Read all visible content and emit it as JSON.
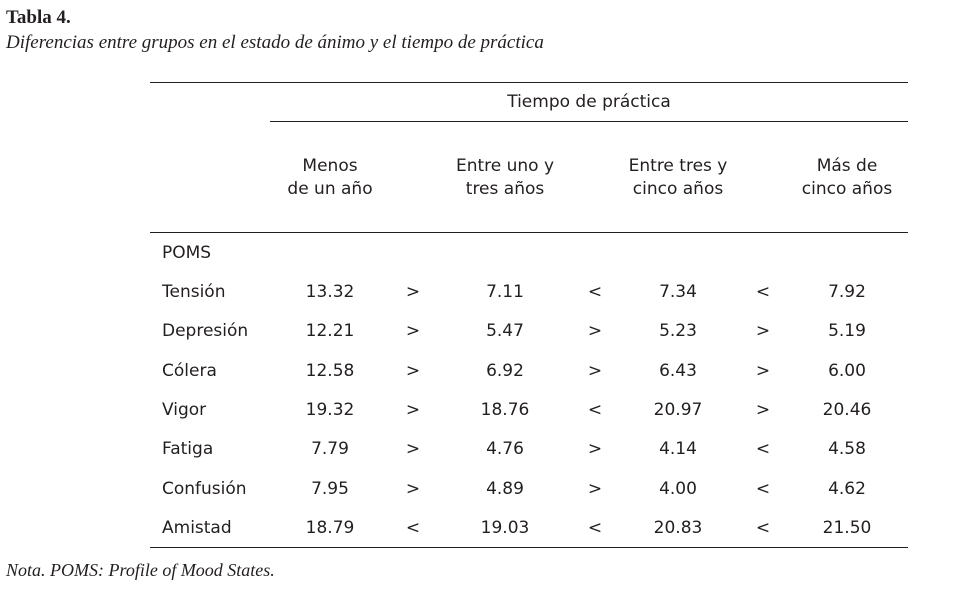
{
  "title": "Tabla 4.",
  "subtitle": "Diferencias entre grupos en el estado de ánimo y el tiempo de práctica",
  "table": {
    "group_header": "Tiempo de práctica",
    "columns": [
      [
        "Menos",
        "de un año"
      ],
      [
        "Entre uno y",
        "tres años"
      ],
      [
        "Entre tres y",
        "cinco años"
      ],
      [
        "Más de",
        "cinco años"
      ]
    ],
    "section": "POMS",
    "rows": [
      {
        "label": "Tensión",
        "cells": [
          "13.32",
          ">",
          "7.11",
          "<",
          "7.34",
          "<",
          "7.92"
        ]
      },
      {
        "label": "Depresión",
        "cells": [
          "12.21",
          ">",
          "5.47",
          ">",
          "5.23",
          ">",
          "5.19"
        ]
      },
      {
        "label": "Cólera",
        "cells": [
          "12.58",
          ">",
          "6.92",
          ">",
          "6.43",
          ">",
          "6.00"
        ]
      },
      {
        "label": "Vigor",
        "cells": [
          "19.32",
          ">",
          "18.76",
          "<",
          "20.97",
          ">",
          "20.46"
        ]
      },
      {
        "label": "Fatiga",
        "cells": [
          "7.79",
          ">",
          "4.76",
          ">",
          "4.14",
          "<",
          "4.58"
        ]
      },
      {
        "label": "Confusión",
        "cells": [
          "7.95",
          ">",
          "4.89",
          ">",
          "4.00",
          "<",
          "4.62"
        ]
      },
      {
        "label": "Amistad",
        "cells": [
          "18.79",
          "<",
          "19.03",
          "<",
          "20.83",
          "<",
          "21.50"
        ]
      }
    ]
  },
  "note": "Nota. POMS: Profile of Mood States."
}
